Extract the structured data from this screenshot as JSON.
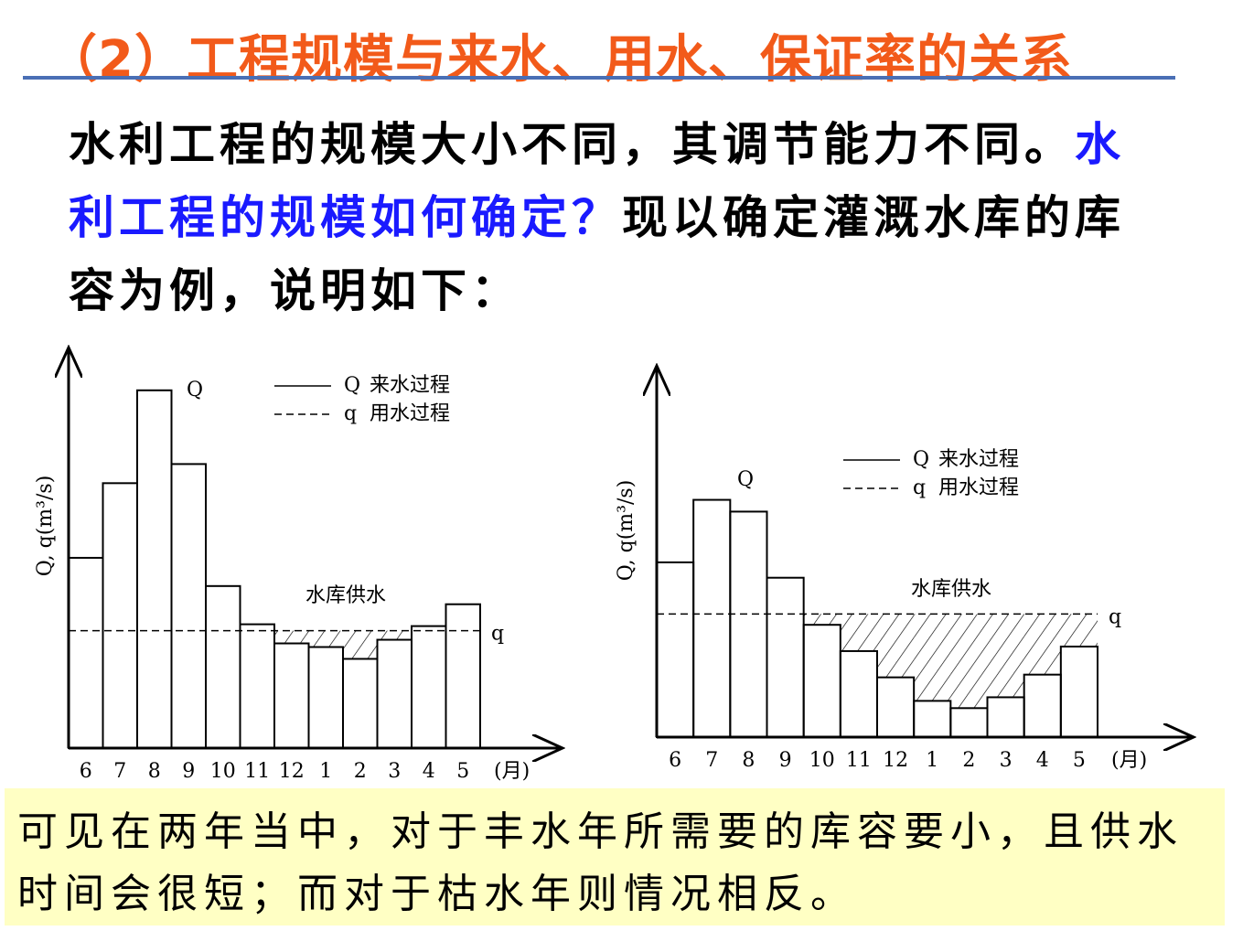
{
  "title": "（2）工程规模与来水、用水、保证率的关系",
  "paragraph": [
    {
      "text": "水利工程的规模大小不同，其调节能力不同。",
      "color": "#000000"
    },
    {
      "text": "水利工程的规模如何确定？",
      "color": "#1a1aff"
    },
    {
      "text": "现以确定灌溉水库的库容为例，说明如下：",
      "color": "#000000"
    }
  ],
  "note": "可见在两年当中，对于丰水年所需要的库容要小，且供水时间会很短；而对于枯水年则情况相反。",
  "chart_data": [
    {
      "type": "bar",
      "y_label": "Q, q(m³/s)",
      "x_unit": "(月)",
      "annotation": "水库供水",
      "categories": [
        "6",
        "7",
        "8",
        "9",
        "10",
        "11",
        "12",
        "1",
        "2",
        "3",
        "4",
        "5"
      ],
      "series": [
        {
          "symbol": "Q",
          "name": "来水过程",
          "values": [
            209,
            291,
            393,
            312,
            178,
            136,
            115,
            111,
            98,
            119,
            134,
            158
          ]
        },
        {
          "symbol": "q",
          "name": "用水过程",
          "value": 129
        }
      ],
      "ylim": [
        0,
        440
      ]
    },
    {
      "type": "bar",
      "y_label": "Q, q(m³/s)",
      "x_unit": "(月)",
      "annotation": "水库供水",
      "categories": [
        "6",
        "7",
        "8",
        "9",
        "10",
        "11",
        "12",
        "1",
        "2",
        "3",
        "4",
        "5"
      ],
      "series": [
        {
          "symbol": "Q",
          "name": "来水过程",
          "values": [
            193,
            262,
            249,
            176,
            124,
            95,
            66,
            40,
            32,
            44,
            69,
            100
          ]
        },
        {
          "symbol": "q",
          "name": "用水过程",
          "value": 136
        }
      ],
      "ylim": [
        0,
        410
      ]
    }
  ]
}
